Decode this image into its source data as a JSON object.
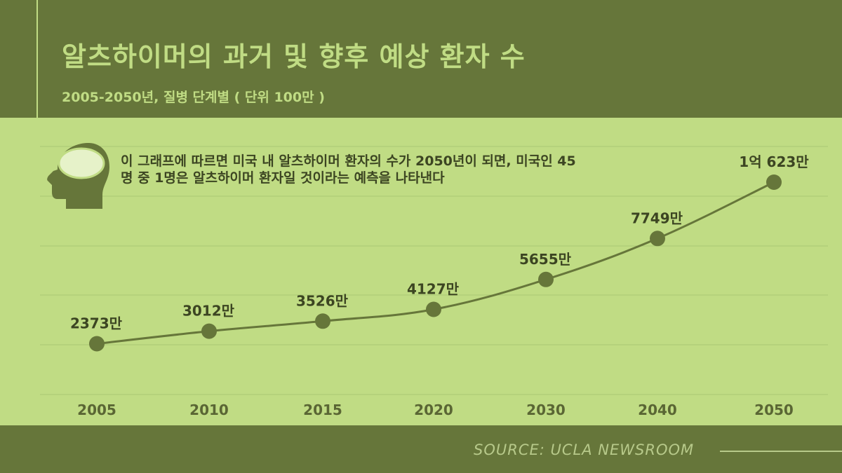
{
  "header": {
    "title": "알츠하이머의 과거 및 향후 예상 환자 수",
    "subtitle": "2005-2050년, 질병 단계별 ( 단위 100만 )"
  },
  "note": {
    "text": "이 그래프에 따르면 미국 내 알츠하이머 환자의 수가 2050년이 되면, 미국인 45명 중 1명은 알츠하이머 환자일 것이라는 예측을 나타낸다"
  },
  "footer": {
    "source": "SOURCE: UCLA NEWSROOM"
  },
  "colors": {
    "background": "#c0dc84",
    "band": "#66763a",
    "line": "#66763a",
    "text": "#3c4522"
  },
  "icons": [
    "head-icon"
  ],
  "chart_data": {
    "type": "line",
    "title": "알츠하이머의 과거 및 향후 예상 환자 수",
    "subtitle": "2005-2050년, 질병 단계별 ( 단위 100만 )",
    "xlabel": "",
    "ylabel": "",
    "grid": true,
    "x": [
      "2005",
      "2010",
      "2015",
      "2020",
      "2030",
      "2040",
      "2050"
    ],
    "values": [
      2373,
      3012,
      3526,
      4127,
      5655,
      7749,
      10623
    ],
    "labels": [
      "2373만",
      "3012만",
      "3526만",
      "4127만",
      "5655만",
      "7749만",
      "1억 623만"
    ]
  }
}
